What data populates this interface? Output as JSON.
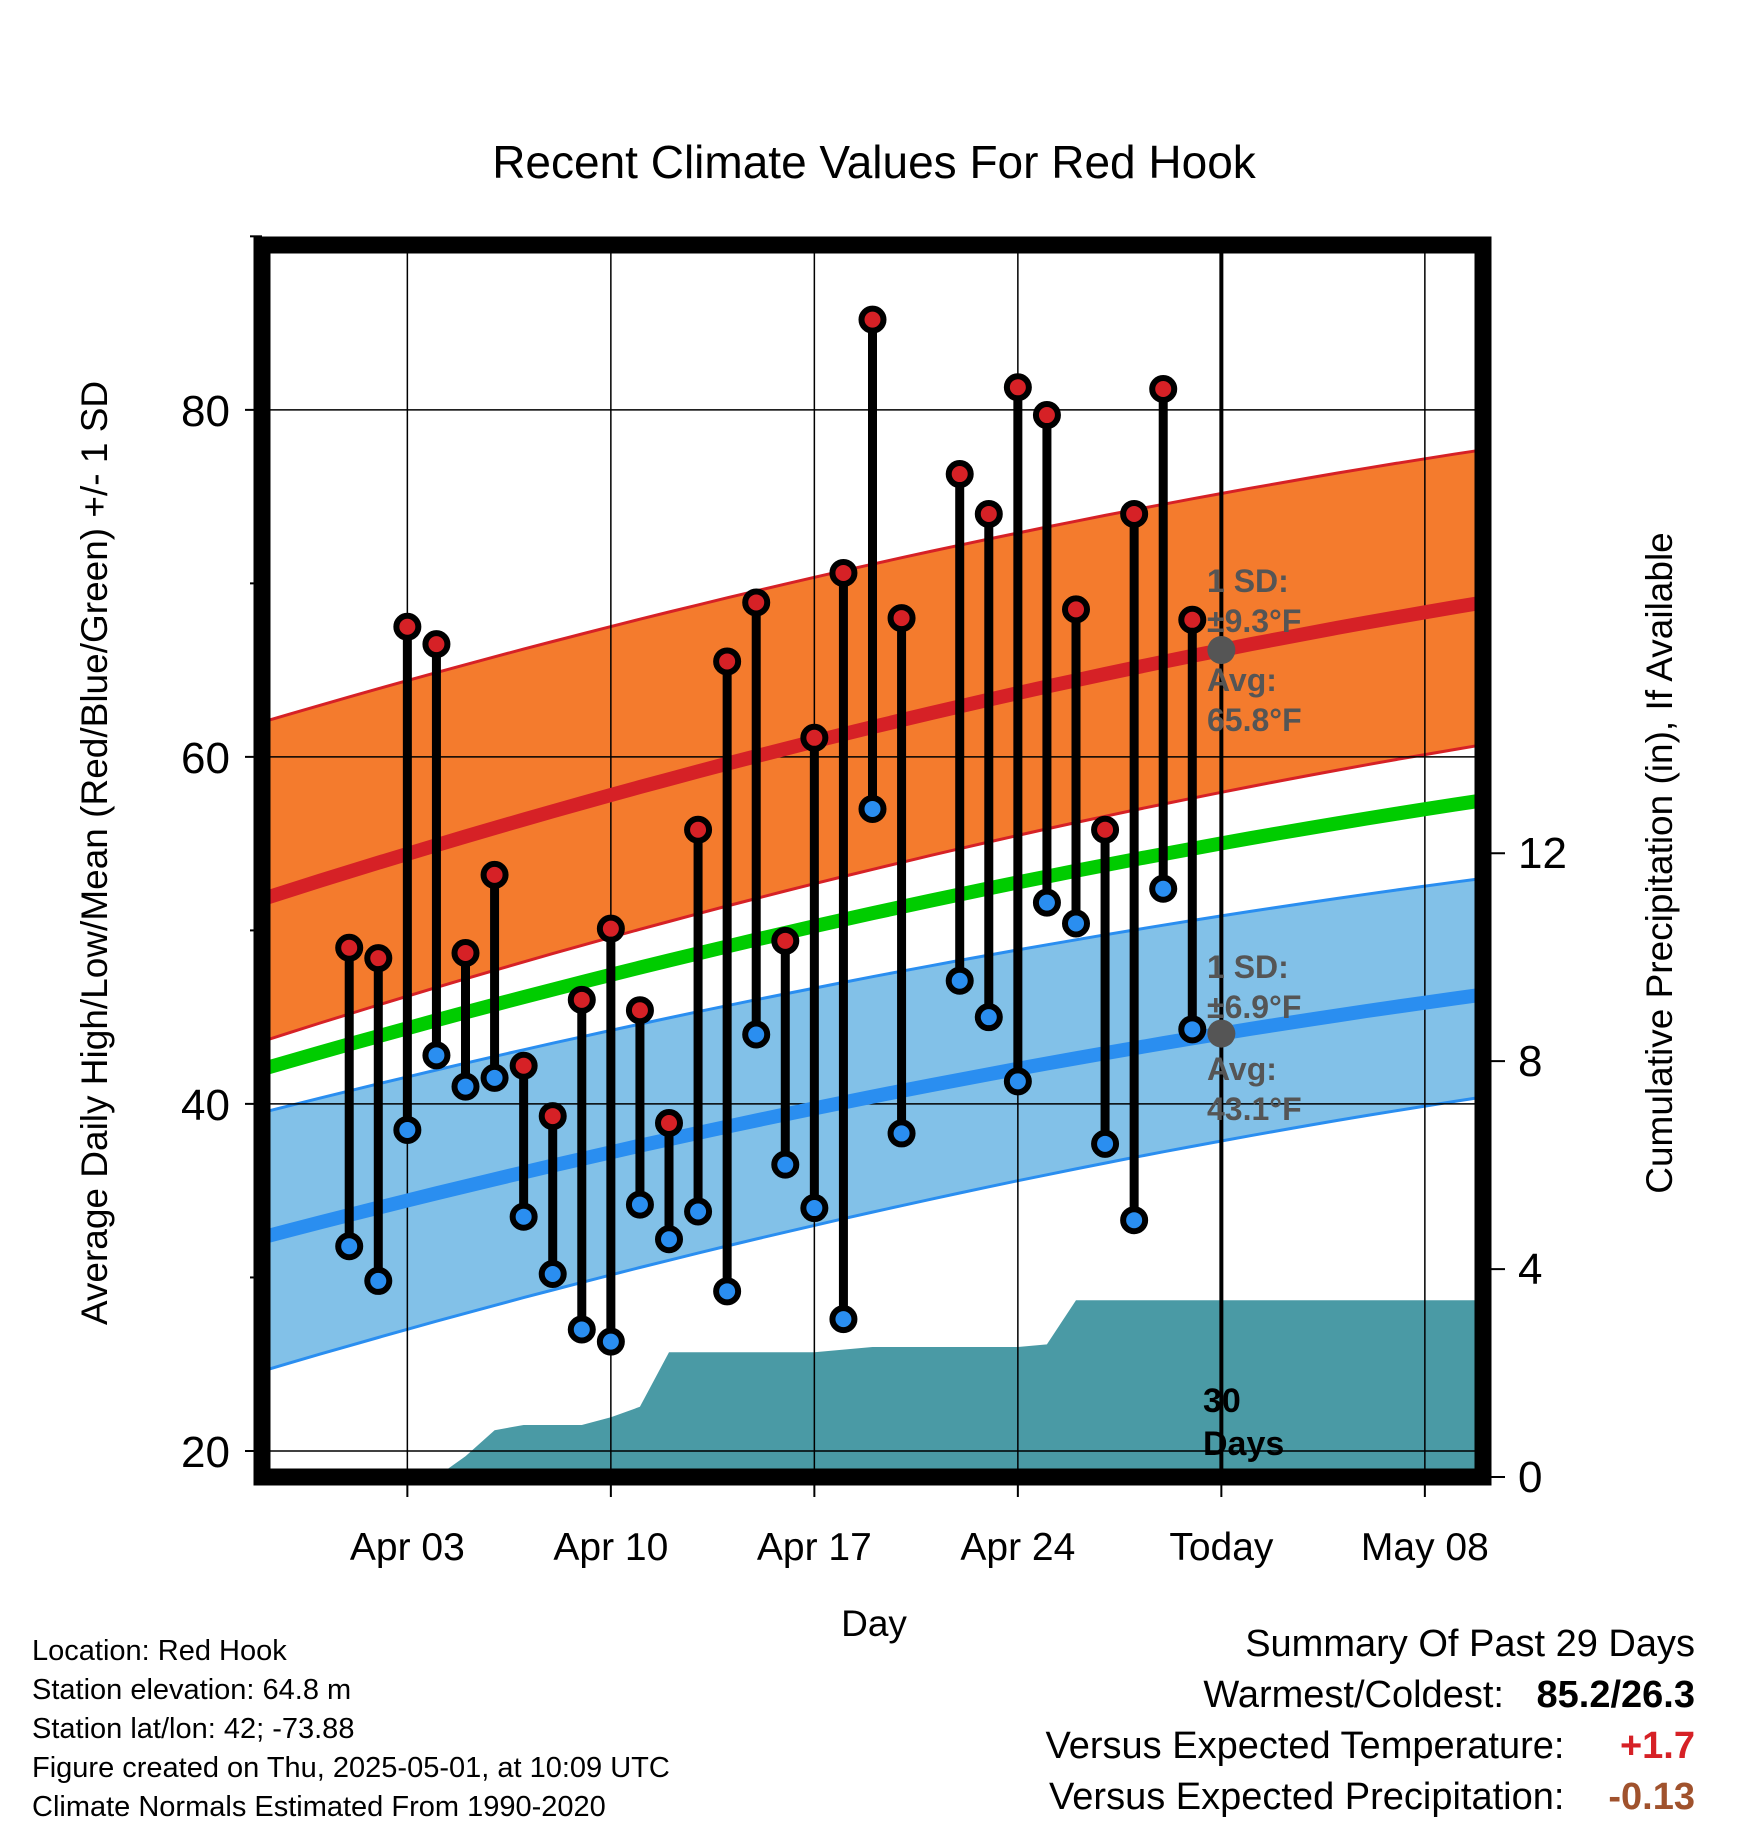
{
  "chart_data": {
    "type": "line",
    "title": "Recent Climate Values For Red Hook",
    "xlabel": "Day",
    "ylabel": "Average Daily High/Low/Mean (Red/Blue/Green) +/- 1 SD",
    "y2label": "Cumulative Precipitation (in), If Available",
    "ylim": [
      18.5,
      89.5
    ],
    "y_ticks": [
      20,
      40,
      60,
      80
    ],
    "y2lim": [
      0,
      23.7
    ],
    "y2_ticks": [
      0,
      4,
      8,
      12
    ],
    "xlim": [
      "2025-03-29",
      "2025-05-10"
    ],
    "x_ticks": [
      {
        "date": "2025-04-03",
        "label": "Apr 03"
      },
      {
        "date": "2025-04-10",
        "label": "Apr 10"
      },
      {
        "date": "2025-04-17",
        "label": "Apr 17"
      },
      {
        "date": "2025-04-24",
        "label": "Apr 24"
      },
      {
        "date": "2025-05-01",
        "label": "Today"
      },
      {
        "date": "2025-05-08",
        "label": "May 08"
      }
    ],
    "grid": true,
    "today": "2025-05-01",
    "today_label": "30 Days",
    "colors": {
      "high": "#d62126",
      "high_band": "#f47b2d",
      "low": "#2a8ef0",
      "low_band": "#82c1e8",
      "mean": "#00cc00",
      "precip": "#4a9aa5",
      "marker_today": "#555555",
      "annotation": "#555555"
    },
    "daily": {
      "x": [
        "2025-04-01",
        "2025-04-02",
        "2025-04-03",
        "2025-04-04",
        "2025-04-05",
        "2025-04-06",
        "2025-04-07",
        "2025-04-08",
        "2025-04-09",
        "2025-04-10",
        "2025-04-11",
        "2025-04-12",
        "2025-04-13",
        "2025-04-14",
        "2025-04-15",
        "2025-04-16",
        "2025-04-17",
        "2025-04-18",
        "2025-04-19",
        "2025-04-20",
        "2025-04-22",
        "2025-04-23",
        "2025-04-24",
        "2025-04-25",
        "2025-04-26",
        "2025-04-27",
        "2025-04-28",
        "2025-04-29",
        "2025-04-30"
      ],
      "high": [
        49.0,
        48.4,
        67.5,
        66.5,
        48.7,
        53.2,
        42.2,
        39.3,
        46.0,
        50.1,
        45.4,
        38.9,
        55.8,
        65.5,
        68.9,
        49.4,
        61.1,
        70.6,
        85.2,
        68.0,
        76.3,
        74.0,
        81.3,
        79.7,
        68.5,
        55.8,
        74.0,
        81.2,
        67.9
      ],
      "low": [
        31.8,
        29.8,
        38.5,
        42.8,
        41.0,
        41.5,
        33.5,
        30.2,
        27.0,
        26.3,
        34.2,
        32.2,
        33.8,
        29.2,
        44.0,
        36.5,
        34.0,
        27.6,
        57.0,
        38.3,
        47.1,
        45.0,
        41.3,
        51.6,
        50.4,
        37.7,
        33.3,
        52.4,
        44.3
      ]
    },
    "normals": {
      "x": [
        "2025-03-29",
        "2025-05-10"
      ],
      "high_avg": [
        51.8,
        68.9
      ],
      "high_sd_upper": [
        62.0,
        77.7
      ],
      "high_sd_lower": [
        43.6,
        60.7
      ],
      "mean_avg": [
        42.0,
        57.5
      ],
      "low_avg": [
        32.3,
        46.3
      ],
      "low_sd_upper": [
        39.5,
        53.0
      ],
      "low_sd_lower": [
        24.6,
        40.4
      ]
    },
    "precip_cumulative": {
      "x": [
        "2025-03-29",
        "2025-04-03",
        "2025-04-04",
        "2025-04-05",
        "2025-04-06",
        "2025-04-07",
        "2025-04-08",
        "2025-04-09",
        "2025-04-10",
        "2025-04-11",
        "2025-04-12",
        "2025-04-13",
        "2025-04-17",
        "2025-04-18",
        "2025-04-19",
        "2025-04-24",
        "2025-04-25",
        "2025-04-26",
        "2025-05-10"
      ],
      "values": [
        0.0,
        0.0,
        0.0,
        0.4,
        0.9,
        1.0,
        1.0,
        1.0,
        1.15,
        1.35,
        2.4,
        2.4,
        2.4,
        2.45,
        2.5,
        2.5,
        2.55,
        3.4,
        3.4
      ]
    },
    "annotations": {
      "high_sd_title": "1 SD:",
      "high_sd_value": "±9.3°F",
      "high_avg_title": "Avg:",
      "high_avg_value": "65.8°F",
      "low_sd_title": "1 SD:",
      "low_sd_value": "±6.9°F",
      "low_avg_title": "Avg:",
      "low_avg_value": "43.1°F"
    }
  },
  "footer": {
    "location": "Location: Red Hook",
    "elevation": "Station elevation: 64.8 m",
    "latlon": "Station lat/lon: 42; -73.88",
    "created": "Figure created on Thu, 2025-05-01, at 10:09 UTC",
    "normals": "Climate Normals Estimated From 1990-2020"
  },
  "summary": {
    "title": "Summary Of Past 29 Days",
    "warmest_coldest_label": "Warmest/Coldest:",
    "warmest_coldest_value": "85.2/26.3",
    "temp_label": "Versus Expected Temperature:",
    "temp_value": "+1.7",
    "temp_color": "#d62126",
    "precip_label": "Versus Expected Precipitation:",
    "precip_value": "-0.13",
    "precip_color": "#a0522d"
  }
}
